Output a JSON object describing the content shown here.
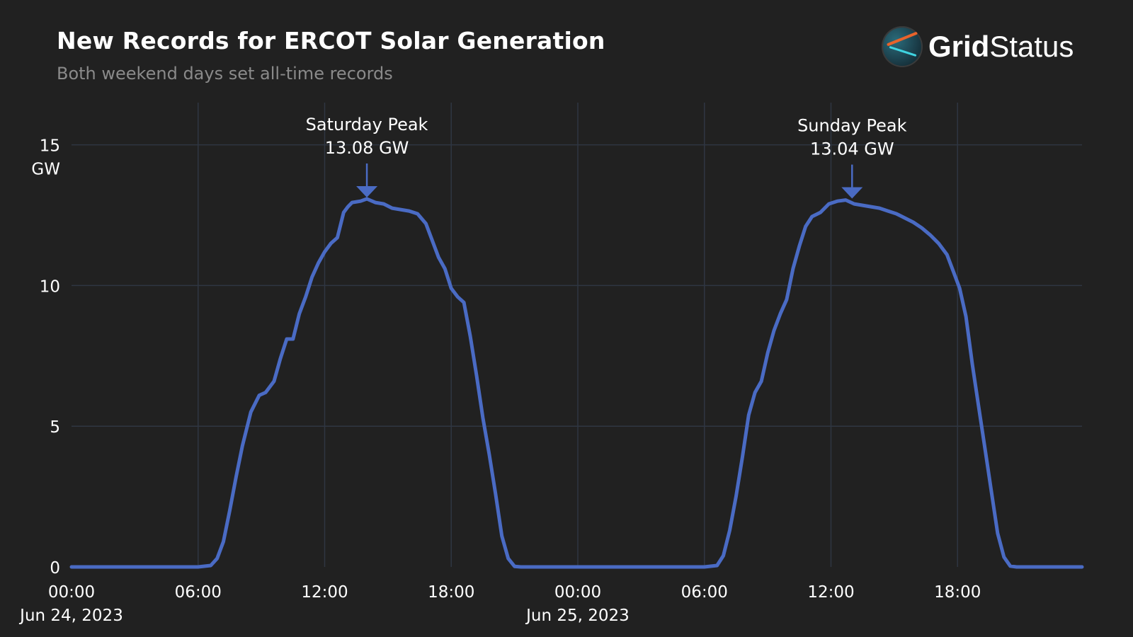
{
  "header": {
    "title": "New Records for ERCOT Solar Generation",
    "subtitle": "Both weekend days set all-time records"
  },
  "logo": {
    "text_bold": "Grid",
    "text_light": "Status"
  },
  "chart_data": {
    "type": "line",
    "title": "New Records for ERCOT Solar Generation",
    "subtitle": "Both weekend days set all-time records",
    "xlabel": "",
    "ylabel": "GW",
    "ylim": [
      0,
      16.5
    ],
    "xlim_hours": [
      0,
      47.9
    ],
    "y_ticks": [
      0,
      5,
      10,
      15
    ],
    "y_tick_labels": [
      "0",
      "5",
      "10",
      "15"
    ],
    "y_unit_label": "GW",
    "x_ticks": [
      {
        "hour": 0,
        "time": "00:00",
        "date": "Jun 24, 2023"
      },
      {
        "hour": 6,
        "time": "06:00",
        "date": ""
      },
      {
        "hour": 12,
        "time": "12:00",
        "date": ""
      },
      {
        "hour": 18,
        "time": "18:00",
        "date": ""
      },
      {
        "hour": 24,
        "time": "00:00",
        "date": "Jun 25, 2023"
      },
      {
        "hour": 30,
        "time": "06:00",
        "date": ""
      },
      {
        "hour": 36,
        "time": "12:00",
        "date": ""
      },
      {
        "hour": 42,
        "time": "18:00",
        "date": ""
      }
    ],
    "grid": true,
    "series": [
      {
        "color": "#4a6bc4",
        "points": [
          [
            0,
            0
          ],
          [
            6,
            0
          ],
          [
            6.6,
            0.05
          ],
          [
            6.9,
            0.3
          ],
          [
            7.2,
            0.9
          ],
          [
            7.5,
            2.0
          ],
          [
            7.8,
            3.2
          ],
          [
            8.1,
            4.3
          ],
          [
            8.5,
            5.5
          ],
          [
            8.9,
            6.1
          ],
          [
            9.2,
            6.2
          ],
          [
            9.6,
            6.6
          ],
          [
            9.9,
            7.4
          ],
          [
            10.2,
            8.1
          ],
          [
            10.5,
            8.1
          ],
          [
            10.8,
            9.0
          ],
          [
            11.1,
            9.6
          ],
          [
            11.4,
            10.3
          ],
          [
            11.7,
            10.8
          ],
          [
            12.0,
            11.2
          ],
          [
            12.3,
            11.5
          ],
          [
            12.6,
            11.7
          ],
          [
            12.9,
            12.6
          ],
          [
            13.1,
            12.8
          ],
          [
            13.3,
            12.95
          ],
          [
            13.7,
            13.0
          ],
          [
            14.0,
            13.08
          ],
          [
            14.4,
            12.95
          ],
          [
            14.8,
            12.9
          ],
          [
            15.2,
            12.75
          ],
          [
            15.6,
            12.7
          ],
          [
            16.0,
            12.65
          ],
          [
            16.4,
            12.55
          ],
          [
            16.8,
            12.2
          ],
          [
            17.1,
            11.6
          ],
          [
            17.4,
            11.0
          ],
          [
            17.7,
            10.6
          ],
          [
            18.0,
            9.9
          ],
          [
            18.3,
            9.6
          ],
          [
            18.6,
            9.4
          ],
          [
            18.9,
            8.2
          ],
          [
            19.2,
            6.8
          ],
          [
            19.5,
            5.3
          ],
          [
            19.8,
            4.0
          ],
          [
            20.1,
            2.6
          ],
          [
            20.4,
            1.1
          ],
          [
            20.7,
            0.3
          ],
          [
            21.0,
            0.02
          ],
          [
            21.3,
            0
          ],
          [
            24,
            0
          ],
          [
            30,
            0
          ],
          [
            30.6,
            0.05
          ],
          [
            30.9,
            0.4
          ],
          [
            31.2,
            1.3
          ],
          [
            31.5,
            2.5
          ],
          [
            31.8,
            3.9
          ],
          [
            32.1,
            5.4
          ],
          [
            32.4,
            6.2
          ],
          [
            32.7,
            6.6
          ],
          [
            33.0,
            7.6
          ],
          [
            33.3,
            8.4
          ],
          [
            33.6,
            9.0
          ],
          [
            33.9,
            9.5
          ],
          [
            34.2,
            10.6
          ],
          [
            34.5,
            11.4
          ],
          [
            34.8,
            12.1
          ],
          [
            35.1,
            12.45
          ],
          [
            35.5,
            12.6
          ],
          [
            35.9,
            12.9
          ],
          [
            36.3,
            13.0
          ],
          [
            36.7,
            13.04
          ],
          [
            37.1,
            12.9
          ],
          [
            37.5,
            12.85
          ],
          [
            37.9,
            12.8
          ],
          [
            38.3,
            12.75
          ],
          [
            38.7,
            12.65
          ],
          [
            39.1,
            12.55
          ],
          [
            39.5,
            12.4
          ],
          [
            39.9,
            12.25
          ],
          [
            40.3,
            12.05
          ],
          [
            40.7,
            11.8
          ],
          [
            41.1,
            11.5
          ],
          [
            41.5,
            11.1
          ],
          [
            41.8,
            10.5
          ],
          [
            42.1,
            9.9
          ],
          [
            42.4,
            8.9
          ],
          [
            42.7,
            7.2
          ],
          [
            43.0,
            5.7
          ],
          [
            43.3,
            4.2
          ],
          [
            43.6,
            2.7
          ],
          [
            43.9,
            1.2
          ],
          [
            44.2,
            0.35
          ],
          [
            44.5,
            0.03
          ],
          [
            44.8,
            0
          ],
          [
            47.9,
            0
          ]
        ]
      }
    ],
    "annotations": [
      {
        "hour": 14.0,
        "value": 13.08,
        "line1": "Saturday Peak",
        "line2": "13.08 GW"
      },
      {
        "hour": 37.0,
        "value": 13.04,
        "line1": "Sunday Peak",
        "line2": "13.04 GW"
      }
    ]
  },
  "colors": {
    "background": "#212121",
    "grid": "#2f3642",
    "line": "#4a6bc4",
    "text": "#ffffff",
    "subtitle": "#8a8a8a"
  }
}
